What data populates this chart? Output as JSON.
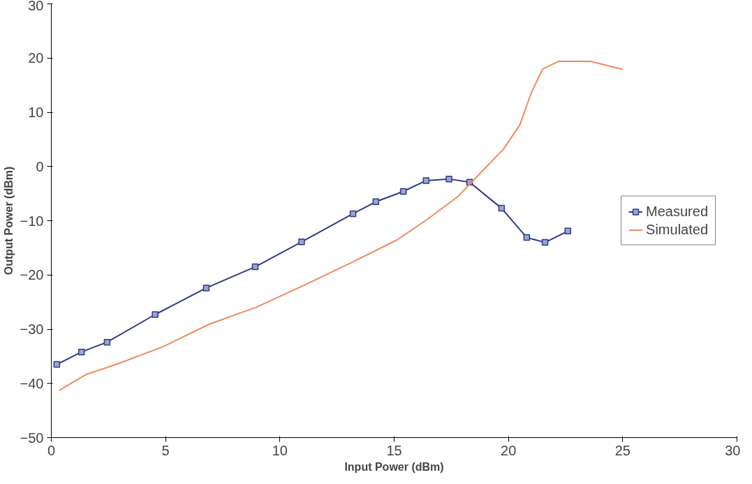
{
  "chart_data": {
    "type": "line",
    "xlabel": "Input Power (dBm)",
    "ylabel": "Output Power (dBm)",
    "xlim": [
      0,
      30
    ],
    "xticks": [
      0,
      5,
      10,
      15,
      20,
      25,
      30
    ],
    "ylim": [
      -50,
      30
    ],
    "yticks": [
      -50,
      -40,
      -30,
      -20,
      -10,
      0,
      10,
      20,
      30
    ],
    "grid": false,
    "legend": "right",
    "line_style": "solid",
    "series": [
      {
        "name": "Measured",
        "color": "#2e3a87",
        "marker": "square",
        "x": [
          0.24,
          1.32,
          2.44,
          4.54,
          6.78,
          8.92,
          10.95,
          13.2,
          14.2,
          15.4,
          16.4,
          17.4,
          18.3,
          19.7,
          20.8,
          21.6,
          22.6
        ],
        "values": [
          -36.5,
          -34.2,
          -32.4,
          -27.3,
          -22.4,
          -18.5,
          -13.9,
          -8.7,
          -6.5,
          -4.6,
          -2.6,
          -2.3,
          -2.9,
          -7.7,
          -13.1,
          -14.0,
          -11.9
        ]
      },
      {
        "name": "Simulated",
        "color": "#f08a5d",
        "marker": "none",
        "x": [
          0.34,
          1.5,
          2.9,
          4.9,
          6.9,
          9,
          11,
          13,
          15.1,
          16.4,
          17.8,
          18.8,
          19.8,
          20.5,
          21,
          21.5,
          22.2,
          23.6,
          25
        ],
        "values": [
          -41.3,
          -38.4,
          -36.4,
          -33.2,
          -29.1,
          -25.9,
          -22,
          -18,
          -13.6,
          -9.9,
          -5.5,
          -1.1,
          3.3,
          7.7,
          13.6,
          18,
          19.4,
          19.4,
          17.9
        ]
      }
    ]
  }
}
